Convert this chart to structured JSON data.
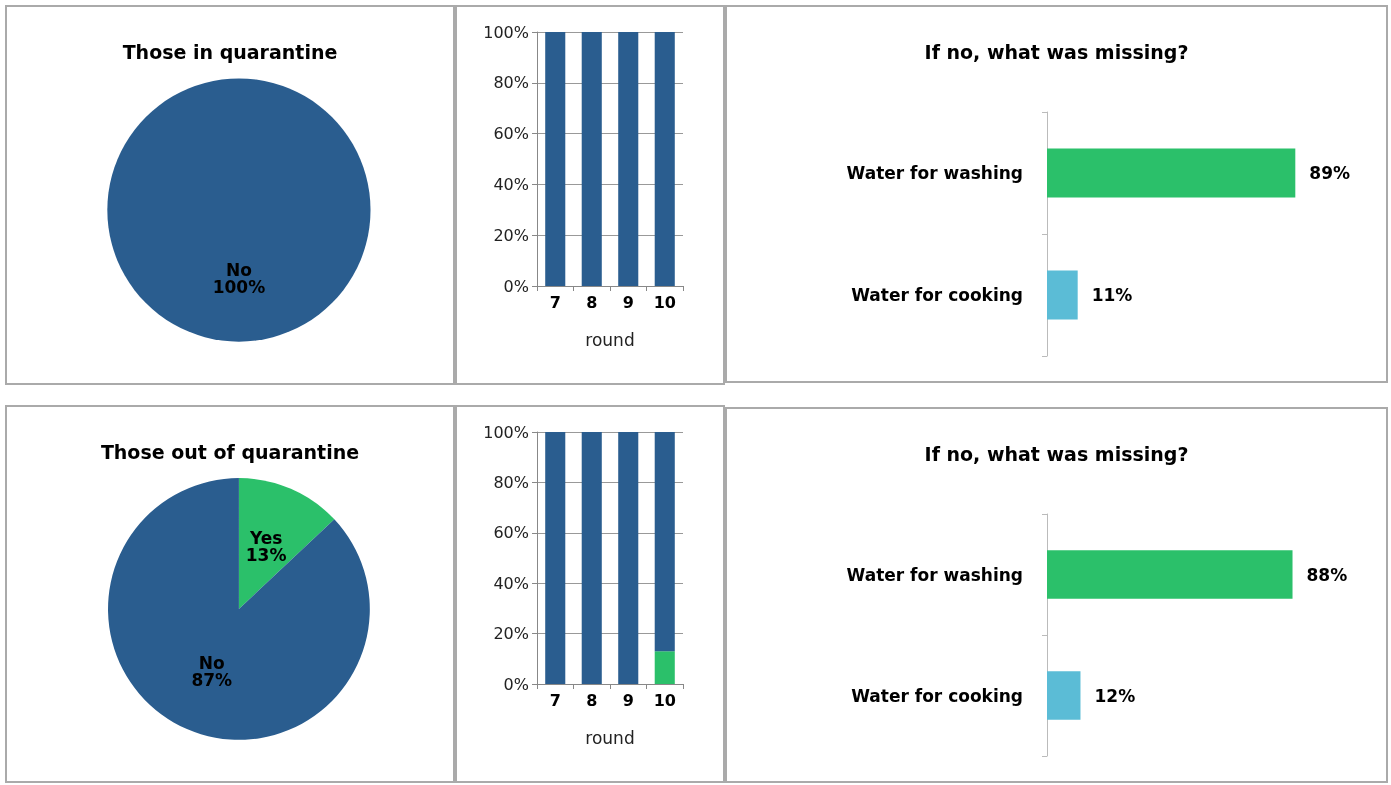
{
  "chart_data": [
    {
      "type": "pie",
      "title": "Those in quarantine",
      "categories": [
        "No"
      ],
      "values": [
        100
      ],
      "colors": [
        "#2a5d8f"
      ],
      "value_labels": [
        "100%"
      ]
    },
    {
      "type": "bar",
      "stacked": true,
      "categories": [
        "7",
        "8",
        "9",
        "10"
      ],
      "xlabel": "round",
      "ylim": [
        0,
        100
      ],
      "yticks": [
        {
          "value": 0,
          "label": "0%"
        },
        {
          "value": 20,
          "label": "20%"
        },
        {
          "value": 40,
          "label": "40%"
        },
        {
          "value": 60,
          "label": "60%"
        },
        {
          "value": 80,
          "label": "80%"
        },
        {
          "value": 100,
          "label": "100%"
        }
      ],
      "grid": "y",
      "series": [
        {
          "color": "#2a5d8f",
          "values": [
            100,
            100,
            100,
            100
          ]
        }
      ]
    },
    {
      "type": "bar",
      "orientation": "horizontal",
      "title": "If no, what was missing?",
      "categories": [
        "Water for washing",
        "Water for cooking"
      ],
      "values": [
        89,
        11
      ],
      "colors": [
        "#2bc06a",
        "#5bbcd6"
      ],
      "value_labels": [
        "89%",
        "11%"
      ]
    },
    {
      "type": "pie",
      "title": "Those out of quarantine",
      "categories": [
        "Yes",
        "No"
      ],
      "values": [
        13,
        87
      ],
      "colors": [
        "#2bc06a",
        "#2a5d8f"
      ],
      "value_labels": [
        "13%",
        "87%"
      ]
    },
    {
      "type": "bar",
      "stacked": true,
      "categories": [
        "7",
        "8",
        "9",
        "10"
      ],
      "xlabel": "round",
      "ylim": [
        0,
        100
      ],
      "yticks": [
        {
          "value": 0,
          "label": "0%"
        },
        {
          "value": 20,
          "label": "20%"
        },
        {
          "value": 40,
          "label": "40%"
        },
        {
          "value": 60,
          "label": "60%"
        },
        {
          "value": 80,
          "label": "80%"
        },
        {
          "value": 100,
          "label": "100%"
        }
      ],
      "grid": "y",
      "series": [
        {
          "color": "#2bc06a",
          "values": [
            0,
            0,
            0,
            13
          ]
        },
        {
          "color": "#2a5d8f",
          "values": [
            100,
            100,
            100,
            87
          ]
        }
      ]
    },
    {
      "type": "bar",
      "orientation": "horizontal",
      "title": "If no, what was missing?",
      "categories": [
        "Water for washing",
        "Water for cooking"
      ],
      "values": [
        88,
        12
      ],
      "colors": [
        "#2bc06a",
        "#5bbcd6"
      ],
      "value_labels": [
        "88%",
        "12%"
      ]
    }
  ]
}
